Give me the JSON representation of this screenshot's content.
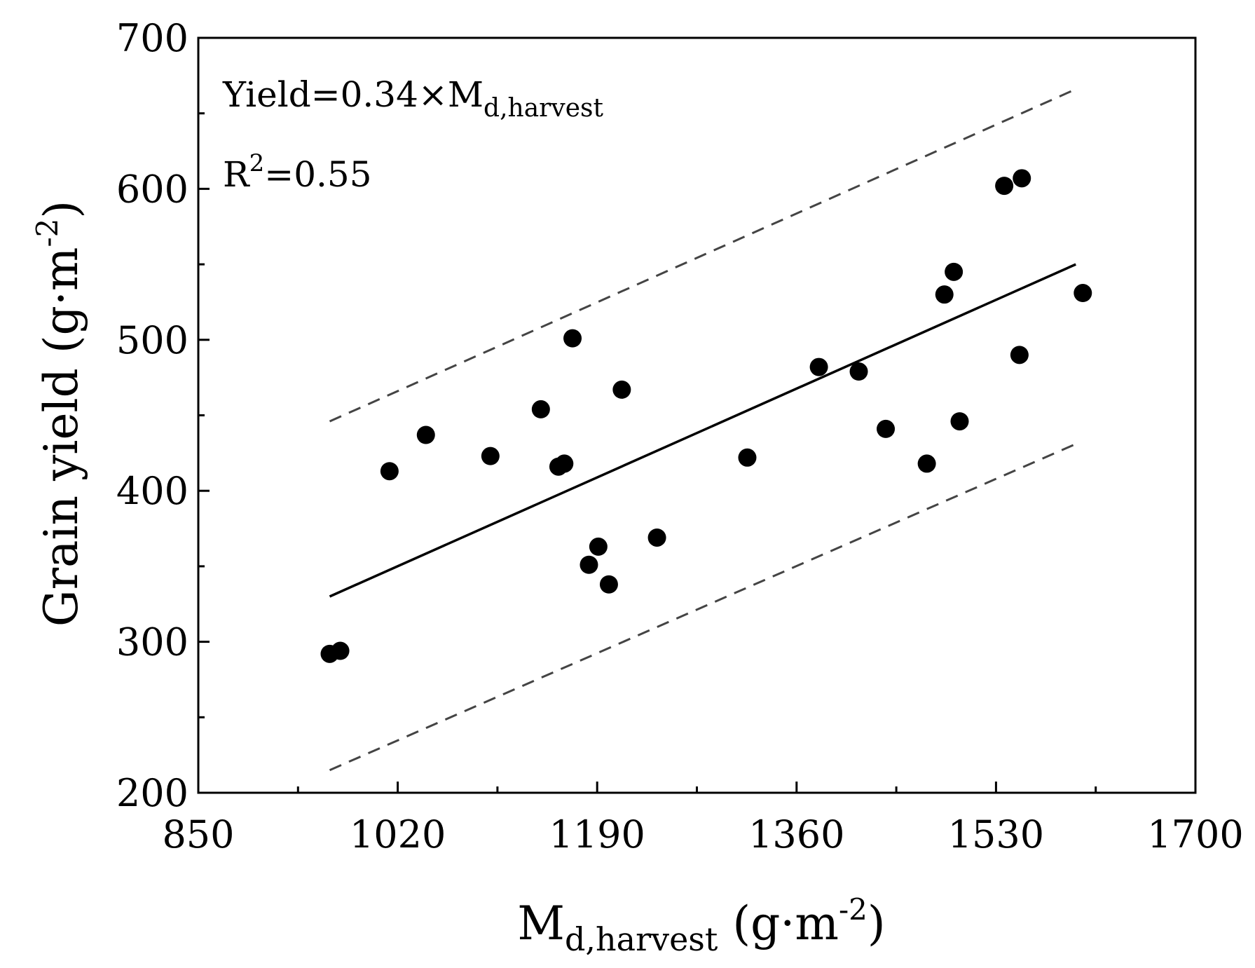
{
  "chart_data": {
    "type": "scatter",
    "title": "",
    "xlabel": {
      "main": "M",
      "sub": "d,harvest",
      "unit_prefix": " (g·m",
      "unit_sup": "-2",
      "unit_suffix": ")"
    },
    "ylabel": {
      "main": "Grain yield (g·m",
      "sup": "-2",
      "suffix": ")"
    },
    "xlim": [
      850,
      1700
    ],
    "ylim": [
      200,
      700
    ],
    "xticks": [
      850,
      1020,
      1190,
      1360,
      1530,
      1700
    ],
    "yticks": [
      200,
      300,
      400,
      500,
      600,
      700
    ],
    "grid": false,
    "points": [
      {
        "x": 962,
        "y": 292
      },
      {
        "x": 971,
        "y": 294
      },
      {
        "x": 1013,
        "y": 413
      },
      {
        "x": 1044,
        "y": 437
      },
      {
        "x": 1099,
        "y": 423
      },
      {
        "x": 1142,
        "y": 454
      },
      {
        "x": 1157,
        "y": 416
      },
      {
        "x": 1162,
        "y": 418
      },
      {
        "x": 1169,
        "y": 501
      },
      {
        "x": 1183,
        "y": 351
      },
      {
        "x": 1191,
        "y": 363
      },
      {
        "x": 1200,
        "y": 338
      },
      {
        "x": 1211,
        "y": 467
      },
      {
        "x": 1241,
        "y": 369
      },
      {
        "x": 1318,
        "y": 422
      },
      {
        "x": 1379,
        "y": 482
      },
      {
        "x": 1413,
        "y": 479
      },
      {
        "x": 1436,
        "y": 441
      },
      {
        "x": 1471,
        "y": 418
      },
      {
        "x": 1486,
        "y": 530
      },
      {
        "x": 1494,
        "y": 545
      },
      {
        "x": 1499,
        "y": 446
      },
      {
        "x": 1537,
        "y": 602
      },
      {
        "x": 1550,
        "y": 490
      },
      {
        "x": 1552,
        "y": 607
      },
      {
        "x": 1604,
        "y": 531
      }
    ],
    "fit_line": {
      "x": [
        962,
        1598
      ],
      "y": [
        330,
        550
      ]
    },
    "upper_bound": {
      "x": [
        962,
        1598
      ],
      "y": [
        446,
        666
      ]
    },
    "lower_bound": {
      "x": [
        962,
        1598
      ],
      "y": [
        215,
        431
      ]
    },
    "annotations": {
      "equation_main": "Yield=0.34×M",
      "equation_sub": "d,harvest",
      "r2_main": "R",
      "r2_sup": "2",
      "r2_value": "=0.55"
    }
  }
}
